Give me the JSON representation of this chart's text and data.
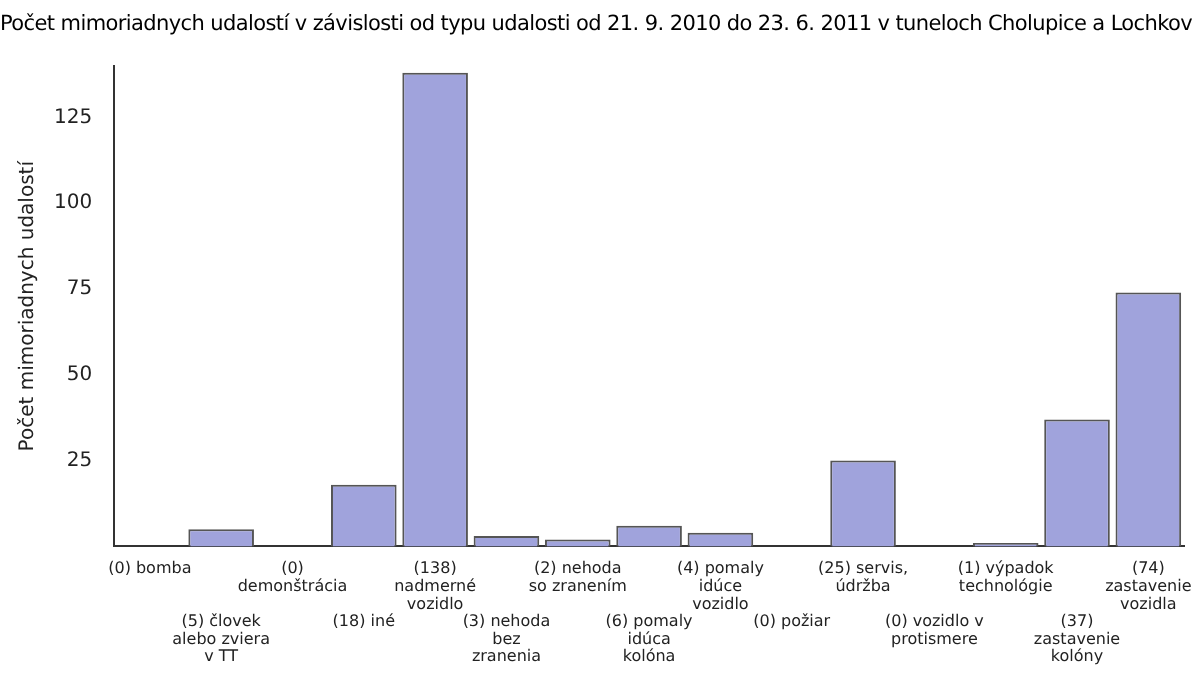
{
  "chart_data": {
    "type": "bar",
    "title": "Počet mimoriadnych udalostí v závislosti od typu udalosti od 21. 9. 2010 do 23. 6. 2011 v tuneloch Cholupice a Lochkov",
    "ylabel": "Počet mimoriadnych udalostí",
    "categories": [
      "(0) bomba",
      "(5) človek alebo zviera v TT",
      "(0) demonštrácia",
      "(18) iné",
      "(138) nadmerné vozidlo",
      "(3) nehoda bez zranenia",
      "(2) nehoda so zranením",
      "(6) pomaly idúca kolóna",
      "(4) pomaly idúce vozidlo",
      "(0) požiar",
      "(25) servis, údržba",
      "(0) vozidlo v protismere",
      "(1) výpadok technológie",
      "(37) zastavenie kolóny",
      "(74) zastavenie vozidla"
    ],
    "values": [
      0,
      5,
      0,
      18,
      138,
      3,
      2,
      6,
      4,
      0,
      25,
      0,
      1,
      37,
      74
    ],
    "color": "#a0a3dc",
    "ylim": [
      0,
      140
    ],
    "yticks": [
      25,
      50,
      75,
      100,
      125
    ],
    "grid": false,
    "legend": false
  }
}
